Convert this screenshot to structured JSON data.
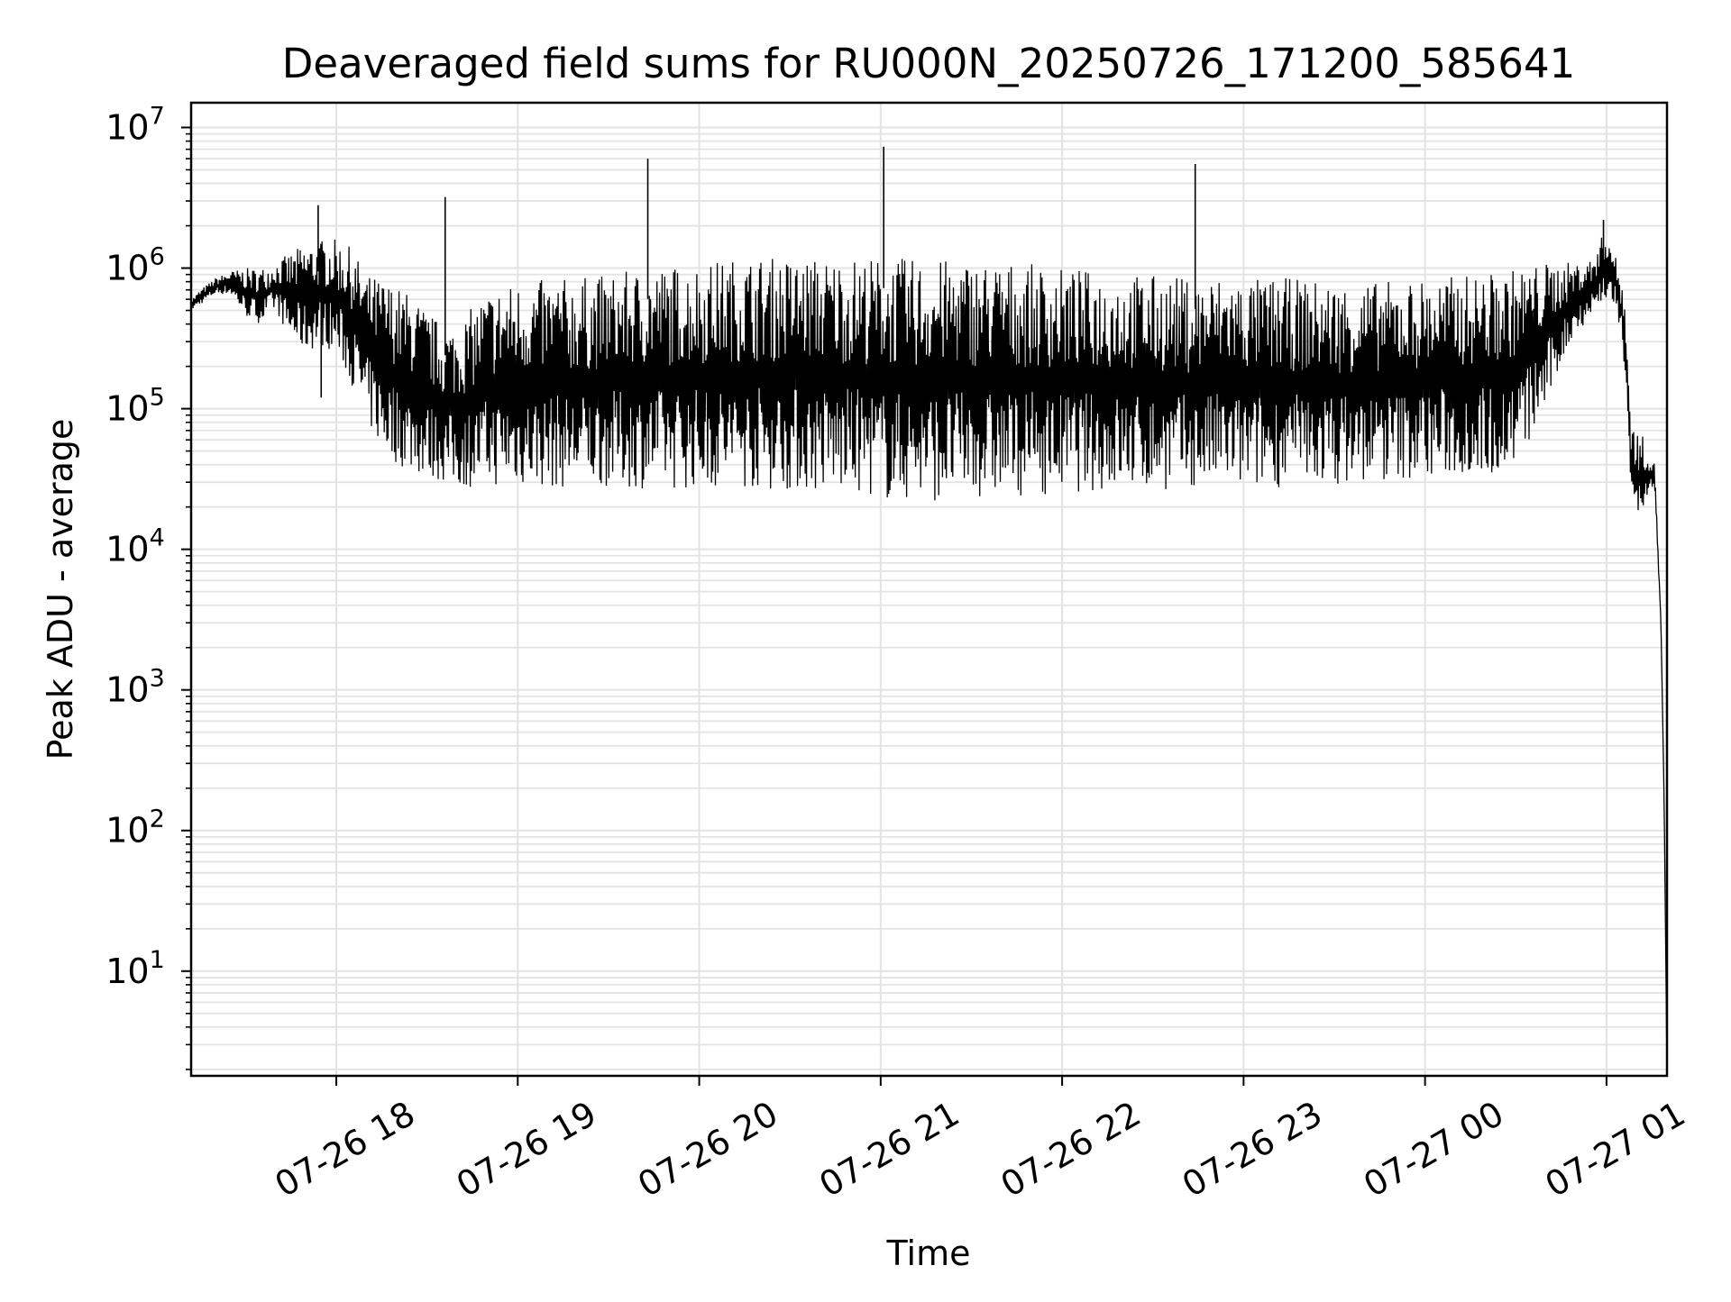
{
  "chart_data": {
    "type": "line",
    "title": "Deaveraged field sums for RU000N_20250726_171200_585641",
    "xlabel": "Time",
    "ylabel": "Peak ADU - average",
    "yscale": "log",
    "xlim": [
      "2025-07-26 17:12",
      "2025-07-27 01:20"
    ],
    "ylim": [
      1.8,
      15000000
    ],
    "grid": true,
    "legend": "none",
    "line_color": "#000000",
    "grid_color": "#e3e3e3",
    "x_ticks": [
      {
        "value": "2025-07-26 18:00",
        "label": "07-26 18"
      },
      {
        "value": "2025-07-26 19:00",
        "label": "07-26 19"
      },
      {
        "value": "2025-07-26 20:00",
        "label": "07-26 20"
      },
      {
        "value": "2025-07-26 21:00",
        "label": "07-26 21"
      },
      {
        "value": "2025-07-26 22:00",
        "label": "07-26 22"
      },
      {
        "value": "2025-07-26 23:00",
        "label": "07-26 23"
      },
      {
        "value": "2025-07-27 00:00",
        "label": "07-27 00"
      },
      {
        "value": "2025-07-27 01:00",
        "label": "07-27 01"
      }
    ],
    "y_ticks": [
      {
        "value": 10,
        "base": "10",
        "exp": "1"
      },
      {
        "value": 100,
        "base": "10",
        "exp": "2"
      },
      {
        "value": 1000,
        "base": "10",
        "exp": "3"
      },
      {
        "value": 10000,
        "base": "10",
        "exp": "4"
      },
      {
        "value": 100000,
        "base": "10",
        "exp": "5"
      },
      {
        "value": 1000000,
        "base": "10",
        "exp": "6"
      },
      {
        "value": 10000000,
        "base": "10",
        "exp": "7"
      }
    ],
    "series": [
      {
        "x": [
          "2025-07-26 17:12",
          "2025-07-26 17:15",
          "2025-07-26 17:20",
          "2025-07-26 17:25",
          "2025-07-26 17:30",
          "2025-07-26 17:35",
          "2025-07-26 17:40",
          "2025-07-26 17:45",
          "2025-07-26 17:50",
          "2025-07-26 17:55",
          "2025-07-26 18:00",
          "2025-07-26 18:05",
          "2025-07-26 18:10",
          "2025-07-26 18:15",
          "2025-07-26 18:20",
          "2025-07-26 18:25",
          "2025-07-26 18:30",
          "2025-07-26 18:35",
          "2025-07-26 18:40",
          "2025-07-26 18:50",
          "2025-07-26 19:00",
          "2025-07-26 19:15",
          "2025-07-26 19:30",
          "2025-07-26 19:42",
          "2025-07-26 20:00",
          "2025-07-26 20:15",
          "2025-07-26 20:30",
          "2025-07-26 20:45",
          "2025-07-26 21:00",
          "2025-07-26 21:02",
          "2025-07-26 21:15",
          "2025-07-26 21:30",
          "2025-07-26 21:45",
          "2025-07-26 22:00",
          "2025-07-26 22:15",
          "2025-07-26 22:30",
          "2025-07-26 22:45",
          "2025-07-26 22:55",
          "2025-07-26 23:00",
          "2025-07-26 23:15",
          "2025-07-26 23:30",
          "2025-07-26 23:45",
          "2025-07-27 00:00",
          "2025-07-27 00:15",
          "2025-07-27 00:25",
          "2025-07-27 00:30",
          "2025-07-27 00:35",
          "2025-07-27 00:40",
          "2025-07-27 00:45",
          "2025-07-27 00:50",
          "2025-07-27 00:55",
          "2025-07-27 01:00",
          "2025-07-27 01:03",
          "2025-07-27 01:06",
          "2025-07-27 01:08",
          "2025-07-27 01:10",
          "2025-07-27 01:13",
          "2025-07-27 01:16",
          "2025-07-27 01:18",
          "2025-07-27 01:19",
          "2025-07-27 01:20"
        ],
        "lower": [
          500000,
          550000,
          650000,
          650000,
          450000,
          400000,
          500000,
          300000,
          250000,
          280000,
          250000,
          150000,
          80000,
          50000,
          40000,
          35000,
          32000,
          30000,
          27000,
          28000,
          28000,
          27000,
          28000,
          27000,
          27000,
          27000,
          26000,
          25000,
          24000,
          22000,
          22000,
          23000,
          24000,
          25000,
          26000,
          26000,
          27000,
          28000,
          26000,
          28000,
          29000,
          30000,
          32000,
          33000,
          34000,
          40000,
          60000,
          100000,
          200000,
          350000,
          450000,
          600000,
          500000,
          200000,
          30000,
          15000,
          20000,
          25000,
          3000,
          200,
          2
        ],
        "upper": [
          600000,
          700000,
          850000,
          950000,
          1000000,
          1000000,
          1100000,
          1300000,
          1500000,
          1600000,
          1600000,
          1400000,
          900000,
          850000,
          750000,
          650000,
          500000,
          400000,
          400000,
          700000,
          800000,
          850000,
          900000,
          1000000,
          1100000,
          1200000,
          1200000,
          1200000,
          1200000,
          1200000,
          1150000,
          1150000,
          1100000,
          1000000,
          950000,
          900000,
          850000,
          900000,
          850000,
          850000,
          800000,
          800000,
          850000,
          900000,
          950000,
          1000000,
          1050000,
          1100000,
          1100000,
          1100000,
          1150000,
          2000000,
          1200000,
          700000,
          80000,
          70000,
          60000,
          40000,
          3000,
          200,
          2
        ],
        "spikes": [
          {
            "x": "2025-07-26 17:54",
            "y": 2800000
          },
          {
            "x": "2025-07-26 17:55",
            "y": 120000
          },
          {
            "x": "2025-07-26 18:36",
            "y": 3200000
          },
          {
            "x": "2025-07-26 19:43",
            "y": 6000000
          },
          {
            "x": "2025-07-26 21:01",
            "y": 7300000
          },
          {
            "x": "2025-07-26 22:44",
            "y": 5500000
          },
          {
            "x": "2025-07-27 00:59",
            "y": 2200000
          }
        ]
      }
    ]
  }
}
